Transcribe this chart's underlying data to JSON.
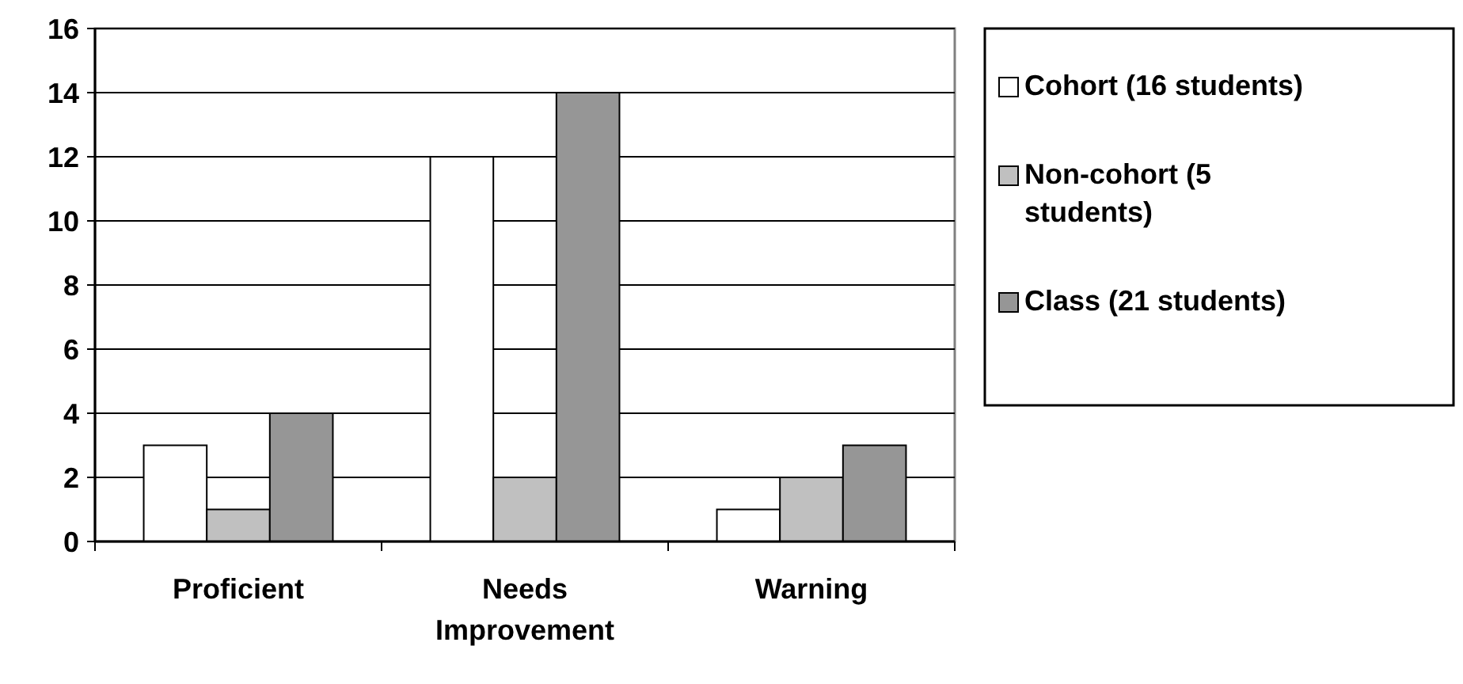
{
  "chart_data": {
    "type": "bar",
    "categories": [
      "Proficient",
      "Needs Improvement",
      "Warning"
    ],
    "series": [
      {
        "name": "Cohort (16 students)",
        "color": "#ffffff",
        "values": [
          3,
          12,
          1
        ]
      },
      {
        "name": "Non-cohort (5 students)",
        "color": "#c0c0c0",
        "values": [
          1,
          2,
          2
        ]
      },
      {
        "name": "Class (21 students)",
        "color": "#969696",
        "values": [
          4,
          14,
          3
        ]
      }
    ],
    "ylim": [
      0,
      16
    ],
    "yticks": [
      0,
      2,
      4,
      6,
      8,
      10,
      12,
      14,
      16
    ],
    "grid": "y",
    "legend": "right"
  }
}
